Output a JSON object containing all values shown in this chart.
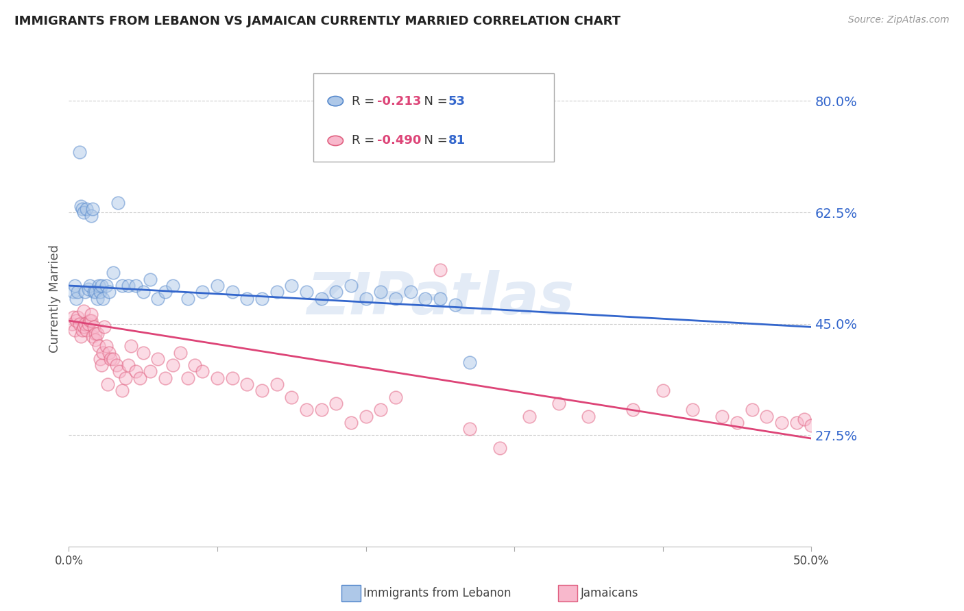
{
  "title": "IMMIGRANTS FROM LEBANON VS JAMAICAN CURRENTLY MARRIED CORRELATION CHART",
  "source": "Source: ZipAtlas.com",
  "ylabel": "Currently Married",
  "right_yticks": [
    "80.0%",
    "62.5%",
    "45.0%",
    "27.5%"
  ],
  "right_ytick_vals": [
    0.8,
    0.625,
    0.45,
    0.275
  ],
  "xlim": [
    0.0,
    0.5
  ],
  "ylim": [
    0.1,
    0.88
  ],
  "legend_blue_r": "-0.213",
  "legend_blue_n": "53",
  "legend_pink_r": "-0.490",
  "legend_pink_n": "81",
  "blue_fill": "#aec8e8",
  "blue_edge": "#5588cc",
  "pink_fill": "#f8b8cc",
  "pink_edge": "#e06080",
  "blue_line_color": "#3366cc",
  "pink_line_color": "#dd4477",
  "watermark": "ZIPatlas",
  "blue_scatter_x": [
    0.003,
    0.004,
    0.005,
    0.006,
    0.007,
    0.008,
    0.009,
    0.01,
    0.011,
    0.012,
    0.013,
    0.014,
    0.015,
    0.016,
    0.017,
    0.018,
    0.019,
    0.02,
    0.021,
    0.022,
    0.023,
    0.025,
    0.027,
    0.03,
    0.033,
    0.036,
    0.04,
    0.045,
    0.05,
    0.055,
    0.06,
    0.065,
    0.07,
    0.08,
    0.09,
    0.1,
    0.11,
    0.12,
    0.13,
    0.14,
    0.15,
    0.16,
    0.17,
    0.18,
    0.19,
    0.2,
    0.21,
    0.22,
    0.23,
    0.24,
    0.25,
    0.26,
    0.27
  ],
  "blue_scatter_y": [
    0.5,
    0.51,
    0.49,
    0.5,
    0.72,
    0.635,
    0.63,
    0.625,
    0.5,
    0.63,
    0.505,
    0.51,
    0.62,
    0.63,
    0.5,
    0.5,
    0.49,
    0.51,
    0.5,
    0.51,
    0.49,
    0.51,
    0.5,
    0.53,
    0.64,
    0.51,
    0.51,
    0.51,
    0.5,
    0.52,
    0.49,
    0.5,
    0.51,
    0.49,
    0.5,
    0.51,
    0.5,
    0.49,
    0.49,
    0.5,
    0.51,
    0.5,
    0.49,
    0.5,
    0.51,
    0.49,
    0.5,
    0.49,
    0.5,
    0.49,
    0.49,
    0.48,
    0.39
  ],
  "pink_scatter_x": [
    0.002,
    0.003,
    0.004,
    0.005,
    0.006,
    0.007,
    0.008,
    0.009,
    0.01,
    0.01,
    0.011,
    0.012,
    0.013,
    0.014,
    0.015,
    0.015,
    0.016,
    0.017,
    0.018,
    0.018,
    0.019,
    0.02,
    0.021,
    0.022,
    0.023,
    0.024,
    0.025,
    0.026,
    0.027,
    0.028,
    0.03,
    0.032,
    0.034,
    0.036,
    0.038,
    0.04,
    0.042,
    0.045,
    0.048,
    0.05,
    0.055,
    0.06,
    0.065,
    0.07,
    0.075,
    0.08,
    0.085,
    0.09,
    0.1,
    0.11,
    0.12,
    0.13,
    0.14,
    0.15,
    0.16,
    0.17,
    0.18,
    0.19,
    0.2,
    0.21,
    0.22,
    0.25,
    0.27,
    0.29,
    0.31,
    0.33,
    0.35,
    0.38,
    0.4,
    0.42,
    0.44,
    0.45,
    0.46,
    0.47,
    0.48,
    0.49,
    0.495,
    0.5,
    0.505,
    0.51,
    0.515
  ],
  "pink_scatter_y": [
    0.45,
    0.46,
    0.44,
    0.455,
    0.46,
    0.45,
    0.43,
    0.44,
    0.47,
    0.445,
    0.45,
    0.44,
    0.45,
    0.455,
    0.455,
    0.465,
    0.43,
    0.445,
    0.435,
    0.425,
    0.435,
    0.415,
    0.395,
    0.385,
    0.405,
    0.445,
    0.415,
    0.355,
    0.405,
    0.395,
    0.395,
    0.385,
    0.375,
    0.345,
    0.365,
    0.385,
    0.415,
    0.375,
    0.365,
    0.405,
    0.375,
    0.395,
    0.365,
    0.385,
    0.405,
    0.365,
    0.385,
    0.375,
    0.365,
    0.365,
    0.355,
    0.345,
    0.355,
    0.335,
    0.315,
    0.315,
    0.325,
    0.295,
    0.305,
    0.315,
    0.335,
    0.535,
    0.285,
    0.255,
    0.305,
    0.325,
    0.305,
    0.315,
    0.345,
    0.315,
    0.305,
    0.295,
    0.315,
    0.305,
    0.295,
    0.295,
    0.3,
    0.29,
    0.275,
    0.285,
    0.27
  ],
  "blue_line_x": [
    0.0,
    0.5
  ],
  "blue_line_y": [
    0.51,
    0.445
  ],
  "pink_line_x": [
    0.0,
    0.5
  ],
  "pink_line_y": [
    0.455,
    0.27
  ],
  "background_color": "#ffffff",
  "grid_color": "#cccccc",
  "scatter_size": 180,
  "scatter_alpha": 0.5,
  "scatter_linewidth": 1.2
}
